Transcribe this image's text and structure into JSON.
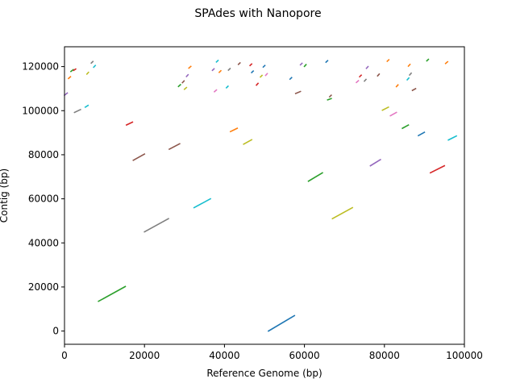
{
  "chart_data": {
    "type": "line",
    "title": "SPAdes with Nanopore",
    "xlabel": "Reference Genome (bp)",
    "ylabel": "Contig (bp)",
    "xlim": [
      0,
      100000
    ],
    "ylim": [
      -6000,
      129000
    ],
    "x_ticks": [
      0,
      20000,
      40000,
      60000,
      80000,
      100000
    ],
    "y_ticks": [
      0,
      20000,
      40000,
      60000,
      80000,
      100000,
      120000
    ],
    "x_tick_labels": [
      "0",
      "20000",
      "40000",
      "60000",
      "80000",
      "100000"
    ],
    "y_tick_labels": [
      "0",
      "20000",
      "40000",
      "60000",
      "80000",
      "100000",
      "120000"
    ],
    "grid": false,
    "legend": "none",
    "palette": [
      "#1f77b4",
      "#ff7f0e",
      "#2ca02c",
      "#d62728",
      "#9467bd",
      "#8c564b",
      "#e377c2",
      "#7f7f7f",
      "#bcbd22",
      "#17becf"
    ],
    "segments": [
      {
        "x": [
          51000,
          57500
        ],
        "y": [
          0,
          7000
        ],
        "color": "#1f77b4"
      },
      {
        "x": [
          8500,
          15200
        ],
        "y": [
          13500,
          20200
        ],
        "color": "#2ca02c"
      },
      {
        "x": [
          20000,
          26000
        ],
        "y": [
          45000,
          51000
        ],
        "color": "#7f7f7f"
      },
      {
        "x": [
          32400,
          36500
        ],
        "y": [
          56000,
          60000
        ],
        "color": "#17becf"
      },
      {
        "x": [
          61000,
          64500
        ],
        "y": [
          68000,
          71800
        ],
        "color": "#2ca02c"
      },
      {
        "x": [
          67000,
          72000
        ],
        "y": [
          51000,
          56000
        ],
        "color": "#bcbd22"
      },
      {
        "x": [
          91500,
          95000
        ],
        "y": [
          71800,
          75000
        ],
        "color": "#d62728"
      },
      {
        "x": [
          76500,
          79000
        ],
        "y": [
          75000,
          77800
        ],
        "color": "#9467bd"
      },
      {
        "x": [
          17200,
          20000
        ],
        "y": [
          77500,
          80300
        ],
        "color": "#8c564b"
      },
      {
        "x": [
          26200,
          28800
        ],
        "y": [
          82500,
          85000
        ],
        "color": "#8c564b"
      },
      {
        "x": [
          44800,
          46800
        ],
        "y": [
          84800,
          86800
        ],
        "color": "#bcbd22"
      },
      {
        "x": [
          41500,
          43200
        ],
        "y": [
          90500,
          92000
        ],
        "color": "#ff7f0e"
      },
      {
        "x": [
          15500,
          17000
        ],
        "y": [
          93500,
          94800
        ],
        "color": "#d62728"
      },
      {
        "x": [
          84500,
          86000
        ],
        "y": [
          92000,
          93500
        ],
        "color": "#2ca02c"
      },
      {
        "x": [
          88500,
          90000
        ],
        "y": [
          88700,
          90200
        ],
        "color": "#1f77b4"
      },
      {
        "x": [
          96000,
          98000
        ],
        "y": [
          86700,
          88500
        ],
        "color": "#17becf"
      },
      {
        "x": [
          81500,
          83000
        ],
        "y": [
          97700,
          99200
        ],
        "color": "#e377c2"
      },
      {
        "x": [
          79500,
          81000
        ],
        "y": [
          100200,
          101600
        ],
        "color": "#bcbd22"
      },
      {
        "x": [
          2500,
          4000
        ],
        "y": [
          99200,
          100500
        ],
        "color": "#7f7f7f"
      },
      {
        "x": [
          5200,
          5900
        ],
        "y": [
          101600,
          102400
        ],
        "color": "#17becf"
      },
      {
        "x": [
          0,
          700
        ],
        "y": [
          107000,
          108000
        ],
        "color": "#9467bd"
      },
      {
        "x": [
          1000,
          1500
        ],
        "y": [
          114600,
          115400
        ],
        "color": "#ff7f0e"
      },
      {
        "x": [
          1600,
          2200
        ],
        "y": [
          117800,
          118600
        ],
        "color": "#2ca02c"
      },
      {
        "x": [
          2300,
          2800
        ],
        "y": [
          118300,
          118900
        ],
        "color": "#d62728"
      },
      {
        "x": [
          5600,
          6000
        ],
        "y": [
          116600,
          117400
        ],
        "color": "#bcbd22"
      },
      {
        "x": [
          6700,
          7100
        ],
        "y": [
          121600,
          122300
        ],
        "color": "#7f7f7f"
      },
      {
        "x": [
          7300,
          7700
        ],
        "y": [
          119700,
          120500
        ],
        "color": "#17becf"
      },
      {
        "x": [
          28500,
          29000
        ],
        "y": [
          111000,
          111800
        ],
        "color": "#2ca02c"
      },
      {
        "x": [
          29500,
          29900
        ],
        "y": [
          112700,
          113500
        ],
        "color": "#8c564b"
      },
      {
        "x": [
          30000,
          30500
        ],
        "y": [
          109700,
          110500
        ],
        "color": "#bcbd22"
      },
      {
        "x": [
          30500,
          30900
        ],
        "y": [
          115500,
          116300
        ],
        "color": "#9467bd"
      },
      {
        "x": [
          31100,
          31600
        ],
        "y": [
          119300,
          120100
        ],
        "color": "#ff7f0e"
      },
      {
        "x": [
          37000,
          37400
        ],
        "y": [
          118300,
          119000
        ],
        "color": "#9467bd"
      },
      {
        "x": [
          37500,
          38000
        ],
        "y": [
          108600,
          109400
        ],
        "color": "#e377c2"
      },
      {
        "x": [
          38000,
          38400
        ],
        "y": [
          122100,
          122800
        ],
        "color": "#17becf"
      },
      {
        "x": [
          38700,
          39100
        ],
        "y": [
          117400,
          118100
        ],
        "color": "#ff7f0e"
      },
      {
        "x": [
          40500,
          40900
        ],
        "y": [
          110400,
          111100
        ],
        "color": "#17becf"
      },
      {
        "x": [
          41000,
          41400
        ],
        "y": [
          118400,
          119100
        ],
        "color": "#7f7f7f"
      },
      {
        "x": [
          43500,
          43900
        ],
        "y": [
          121000,
          121700
        ],
        "color": "#8c564b"
      },
      {
        "x": [
          46400,
          46800
        ],
        "y": [
          120500,
          121200
        ],
        "color": "#d62728"
      },
      {
        "x": [
          46800,
          47200
        ],
        "y": [
          117300,
          118000
        ],
        "color": "#1f77b4"
      },
      {
        "x": [
          48000,
          48400
        ],
        "y": [
          111600,
          112400
        ],
        "color": "#d62728"
      },
      {
        "x": [
          49000,
          49400
        ],
        "y": [
          115300,
          116000
        ],
        "color": "#bcbd22"
      },
      {
        "x": [
          49700,
          50100
        ],
        "y": [
          119800,
          120500
        ],
        "color": "#1f77b4"
      },
      {
        "x": [
          50300,
          50700
        ],
        "y": [
          116000,
          116800
        ],
        "color": "#e377c2"
      },
      {
        "x": [
          56400,
          56800
        ],
        "y": [
          114300,
          115000
        ],
        "color": "#1f77b4"
      },
      {
        "x": [
          57800,
          59000
        ],
        "y": [
          107800,
          108700
        ],
        "color": "#8c564b"
      },
      {
        "x": [
          59000,
          59400
        ],
        "y": [
          120800,
          121500
        ],
        "color": "#9467bd"
      },
      {
        "x": [
          60000,
          60400
        ],
        "y": [
          120100,
          120900
        ],
        "color": "#2ca02c"
      },
      {
        "x": [
          65400,
          65800
        ],
        "y": [
          122000,
          122700
        ],
        "color": "#1f77b4"
      },
      {
        "x": [
          65800,
          66700
        ],
        "y": [
          104900,
          105500
        ],
        "color": "#2ca02c"
      },
      {
        "x": [
          66300,
          66700
        ],
        "y": [
          106300,
          107000
        ],
        "color": "#8c564b"
      },
      {
        "x": [
          73000,
          73500
        ],
        "y": [
          112800,
          113600
        ],
        "color": "#e377c2"
      },
      {
        "x": [
          73800,
          74200
        ],
        "y": [
          115400,
          116100
        ],
        "color": "#d62728"
      },
      {
        "x": [
          75000,
          75400
        ],
        "y": [
          113400,
          114200
        ],
        "color": "#7f7f7f"
      },
      {
        "x": [
          75500,
          75900
        ],
        "y": [
          119200,
          120000
        ],
        "color": "#9467bd"
      },
      {
        "x": [
          78300,
          78700
        ],
        "y": [
          115800,
          116600
        ],
        "color": "#8c564b"
      },
      {
        "x": [
          80700,
          81100
        ],
        "y": [
          122400,
          123100
        ],
        "color": "#ff7f0e"
      },
      {
        "x": [
          83000,
          83400
        ],
        "y": [
          110900,
          111700
        ],
        "color": "#ff7f0e"
      },
      {
        "x": [
          85700,
          86100
        ],
        "y": [
          114000,
          114800
        ],
        "color": "#17becf"
      },
      {
        "x": [
          86000,
          86400
        ],
        "y": [
          120200,
          121000
        ],
        "color": "#ff7f0e"
      },
      {
        "x": [
          86300,
          86700
        ],
        "y": [
          116200,
          117000
        ],
        "color": "#7f7f7f"
      },
      {
        "x": [
          87000,
          87800
        ],
        "y": [
          109200,
          110000
        ],
        "color": "#8c564b"
      },
      {
        "x": [
          90600,
          91000
        ],
        "y": [
          122600,
          123300
        ],
        "color": "#2ca02c"
      },
      {
        "x": [
          95300,
          95800
        ],
        "y": [
          121400,
          122200
        ],
        "color": "#ff7f0e"
      }
    ]
  }
}
